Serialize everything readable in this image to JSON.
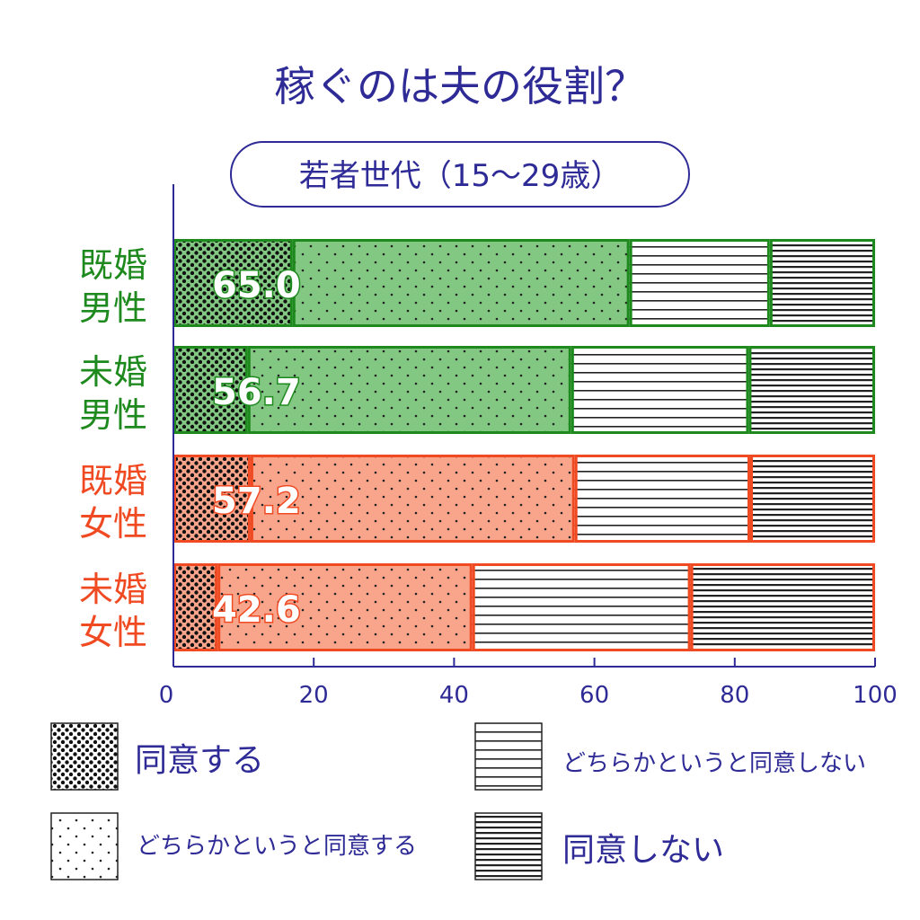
{
  "colors": {
    "navy": "#2e2a96",
    "male_edge": "#1e8a1e",
    "male_fill": "#82c882",
    "female_edge": "#f04a22",
    "female_fill": "#f8a58c"
  },
  "chart_data": {
    "type": "bar",
    "orientation": "horizontal",
    "stacked": true,
    "title": "稼ぐのは夫の役割？",
    "subtitle": "若者世代（15～29歳）",
    "xlim": [
      0,
      100
    ],
    "x_ticks": [
      "0",
      "20",
      "40",
      "60",
      "80",
      "100"
    ],
    "grid": false,
    "categories": [
      {
        "line1": "既婚",
        "line2": "男性",
        "group": "male"
      },
      {
        "line1": "未婚",
        "line2": "男性",
        "group": "male"
      },
      {
        "line1": "既婚",
        "line2": "女性",
        "group": "female"
      },
      {
        "line1": "未婚",
        "line2": "女性",
        "group": "female"
      }
    ],
    "series": [
      {
        "name": "同意する",
        "pattern": "dots-dense",
        "values": [
          17.0,
          10.6,
          11.0,
          6.3
        ]
      },
      {
        "name": "どちらかというと同意する",
        "pattern": "dots-sparse",
        "values": [
          48.0,
          46.1,
          46.2,
          36.3
        ]
      },
      {
        "name": "どちらかというと同意しない",
        "pattern": "lines-sparse",
        "values": [
          20.0,
          25.3,
          25.0,
          31.1
        ]
      },
      {
        "name": "同意しない",
        "pattern": "lines-dense",
        "values": [
          15.0,
          18.0,
          17.8,
          26.3
        ]
      }
    ],
    "agree_totals": [
      "65.0",
      "56.7",
      "57.2",
      "42.6"
    ],
    "legend_position": "bottom"
  }
}
